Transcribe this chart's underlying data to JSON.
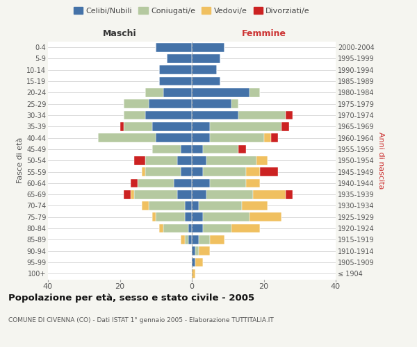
{
  "age_groups": [
    "100+",
    "95-99",
    "90-94",
    "85-89",
    "80-84",
    "75-79",
    "70-74",
    "65-69",
    "60-64",
    "55-59",
    "50-54",
    "45-49",
    "40-44",
    "35-39",
    "30-34",
    "25-29",
    "20-24",
    "15-19",
    "10-14",
    "5-9",
    "0-4"
  ],
  "birth_years": [
    "≤ 1904",
    "1905-1909",
    "1910-1914",
    "1915-1919",
    "1920-1924",
    "1925-1929",
    "1930-1934",
    "1935-1939",
    "1940-1944",
    "1945-1949",
    "1950-1954",
    "1955-1959",
    "1960-1964",
    "1965-1969",
    "1970-1974",
    "1975-1979",
    "1980-1984",
    "1985-1989",
    "1990-1994",
    "1995-1999",
    "2000-2004"
  ],
  "colors": {
    "celibi": "#4472a8",
    "coniugati": "#b5c9a0",
    "vedovi": "#f0c060",
    "divorziati": "#cc2222"
  },
  "males": {
    "celibi": [
      0,
      0,
      0,
      1,
      1,
      2,
      2,
      4,
      5,
      3,
      4,
      3,
      10,
      11,
      13,
      12,
      8,
      9,
      9,
      7,
      10
    ],
    "coniugati": [
      0,
      0,
      0,
      1,
      7,
      8,
      10,
      12,
      10,
      10,
      9,
      8,
      16,
      8,
      6,
      7,
      5,
      0,
      0,
      0,
      0
    ],
    "vedovi": [
      0,
      0,
      0,
      1,
      1,
      1,
      2,
      1,
      0,
      1,
      0,
      0,
      0,
      0,
      0,
      0,
      0,
      0,
      0,
      0,
      0
    ],
    "divorziati": [
      0,
      0,
      0,
      0,
      0,
      0,
      0,
      2,
      2,
      0,
      3,
      0,
      0,
      1,
      0,
      0,
      0,
      0,
      0,
      0,
      0
    ]
  },
  "females": {
    "celibi": [
      0,
      1,
      1,
      2,
      3,
      3,
      2,
      4,
      5,
      3,
      4,
      3,
      5,
      5,
      13,
      11,
      16,
      8,
      7,
      8,
      9
    ],
    "coniugati": [
      0,
      0,
      1,
      3,
      8,
      13,
      12,
      13,
      10,
      12,
      14,
      10,
      15,
      20,
      13,
      2,
      3,
      0,
      0,
      0,
      0
    ],
    "vedovi": [
      1,
      2,
      3,
      4,
      8,
      9,
      7,
      9,
      4,
      4,
      3,
      0,
      2,
      0,
      0,
      0,
      0,
      0,
      0,
      0,
      0
    ],
    "divorziati": [
      0,
      0,
      0,
      0,
      0,
      0,
      0,
      2,
      0,
      5,
      0,
      2,
      2,
      2,
      2,
      0,
      0,
      0,
      0,
      0,
      0
    ]
  },
  "xlim": 40,
  "title": "Popolazione per età, sesso e stato civile - 2005",
  "subtitle": "COMUNE DI CIVENNA (CO) - Dati ISTAT 1° gennaio 2005 - Elaborazione TUTTITALIA.IT",
  "ylabel_left": "Fasce di età",
  "ylabel_right": "Anni di nascita",
  "xlabel_left": "Maschi",
  "xlabel_right": "Femmine",
  "legend_labels": [
    "Celibi/Nubili",
    "Coniugati/e",
    "Vedovi/e",
    "Divorziati/e"
  ],
  "bg_color": "#f5f5f0",
  "bar_bg": "#ffffff"
}
